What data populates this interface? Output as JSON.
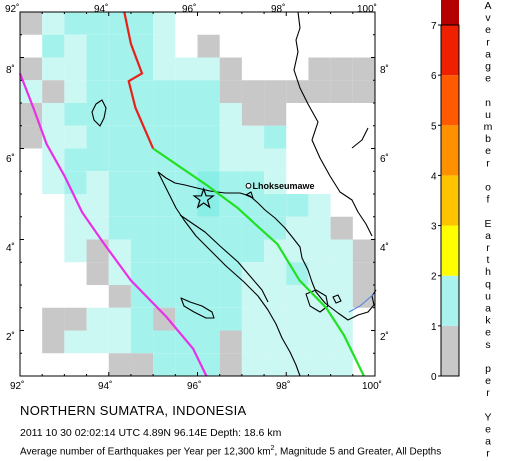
{
  "map": {
    "lon_range": [
      92,
      100
    ],
    "lat_range": [
      1,
      9
    ],
    "lon_ticks": [
      "92˚",
      "94˚",
      "96˚",
      "98˚",
      "100˚"
    ],
    "lat_ticks": [
      "2˚",
      "4˚",
      "6˚",
      "8˚"
    ],
    "colors": {
      "cell_gray": "#c8c8c8",
      "cell_cyan_light": "#ccf8f4",
      "cell_cyan": "#a4f2ec",
      "cell_cyan_strong": "#88eee6",
      "plate_boundary_red": "#e8201a",
      "plate_boundary_green": "#22e022",
      "trench_magenta": "#e830e8",
      "river": "#4a7fe0"
    },
    "cells": [
      {
        "lon": 92,
        "lat": 8.5,
        "level": "gray"
      },
      {
        "lon": 92.5,
        "lat": 8.5,
        "level": "light"
      },
      {
        "lon": 93,
        "lat": 8.5,
        "level": "cyan"
      },
      {
        "lon": 93.5,
        "lat": 8.5,
        "level": "cyan"
      },
      {
        "lon": 94,
        "lat": 8.5,
        "level": "cyan"
      },
      {
        "lon": 94.5,
        "lat": 8.5,
        "level": "cyan"
      },
      {
        "lon": 95,
        "lat": 8.5,
        "level": "light"
      },
      {
        "lon": 92,
        "lat": 8,
        "level": "none"
      },
      {
        "lon": 92.5,
        "lat": 8,
        "level": "cyan"
      },
      {
        "lon": 93,
        "lat": 8,
        "level": "light"
      },
      {
        "lon": 93.5,
        "lat": 8,
        "level": "cyan"
      },
      {
        "lon": 94,
        "lat": 8,
        "level": "cyan"
      },
      {
        "lon": 94.5,
        "lat": 8,
        "level": "cyan"
      },
      {
        "lon": 95,
        "lat": 8,
        "level": "light"
      },
      {
        "lon": 96,
        "lat": 8,
        "level": "gray"
      },
      {
        "lon": 92,
        "lat": 7.5,
        "level": "gray"
      },
      {
        "lon": 92.5,
        "lat": 7.5,
        "level": "light"
      },
      {
        "lon": 93,
        "lat": 7.5,
        "level": "light"
      },
      {
        "lon": 93.5,
        "lat": 7.5,
        "level": "cyan"
      },
      {
        "lon": 94,
        "lat": 7.5,
        "level": "cyan"
      },
      {
        "lon": 94.5,
        "lat": 7.5,
        "level": "cyan"
      },
      {
        "lon": 95,
        "lat": 7.5,
        "level": "light"
      },
      {
        "lon": 95.5,
        "lat": 7.5,
        "level": "light"
      },
      {
        "lon": 96,
        "lat": 7.5,
        "level": "light"
      },
      {
        "lon": 96.5,
        "lat": 7.5,
        "level": "gray"
      },
      {
        "lon": 98.5,
        "lat": 7.5,
        "level": "gray"
      },
      {
        "lon": 99,
        "lat": 7.5,
        "level": "gray"
      },
      {
        "lon": 99.5,
        "lat": 7.5,
        "level": "gray"
      },
      {
        "lon": 92,
        "lat": 7,
        "level": "light"
      },
      {
        "lon": 92.5,
        "lat": 7,
        "level": "gray"
      },
      {
        "lon": 93,
        "lat": 7,
        "level": "light"
      },
      {
        "lon": 93.5,
        "lat": 7,
        "level": "cyan"
      },
      {
        "lon": 94,
        "lat": 7,
        "level": "cyan"
      },
      {
        "lon": 94.5,
        "lat": 7,
        "level": "cyan"
      },
      {
        "lon": 95,
        "lat": 7,
        "level": "cyan"
      },
      {
        "lon": 95.5,
        "lat": 7,
        "level": "cyan"
      },
      {
        "lon": 96,
        "lat": 7,
        "level": "cyan"
      },
      {
        "lon": 96.5,
        "lat": 7,
        "level": "gray"
      },
      {
        "lon": 97,
        "lat": 7,
        "level": "gray"
      },
      {
        "lon": 97.5,
        "lat": 7,
        "level": "gray"
      },
      {
        "lon": 98,
        "lat": 7,
        "level": "gray"
      },
      {
        "lon": 98.5,
        "lat": 7,
        "level": "gray"
      },
      {
        "lon": 99,
        "lat": 7,
        "level": "gray"
      },
      {
        "lon": 99.5,
        "lat": 7,
        "level": "gray"
      },
      {
        "lon": 92,
        "lat": 6.5,
        "level": "gray"
      },
      {
        "lon": 92.5,
        "lat": 6.5,
        "level": "light"
      },
      {
        "lon": 93,
        "lat": 6.5,
        "level": "cyan"
      },
      {
        "lon": 93.5,
        "lat": 6.5,
        "level": "cyan"
      },
      {
        "lon": 94,
        "lat": 6.5,
        "level": "cyan"
      },
      {
        "lon": 94.5,
        "lat": 6.5,
        "level": "cyan"
      },
      {
        "lon": 95,
        "lat": 6.5,
        "level": "cyan"
      },
      {
        "lon": 95.5,
        "lat": 6.5,
        "level": "cyan"
      },
      {
        "lon": 96,
        "lat": 6.5,
        "level": "cyan"
      },
      {
        "lon": 96.5,
        "lat": 6.5,
        "level": "light"
      },
      {
        "lon": 97,
        "lat": 6.5,
        "level": "gray"
      },
      {
        "lon": 97.5,
        "lat": 6.5,
        "level": "gray"
      },
      {
        "lon": 92,
        "lat": 6,
        "level": "gray"
      },
      {
        "lon": 92.5,
        "lat": 6,
        "level": "light"
      },
      {
        "lon": 93,
        "lat": 6,
        "level": "light"
      },
      {
        "lon": 93.5,
        "lat": 6,
        "level": "cyan"
      },
      {
        "lon": 94,
        "lat": 6,
        "level": "cyan"
      },
      {
        "lon": 94.5,
        "lat": 6,
        "level": "cyan"
      },
      {
        "lon": 95,
        "lat": 6,
        "level": "cyan"
      },
      {
        "lon": 95.5,
        "lat": 6,
        "level": "cyan"
      },
      {
        "lon": 96,
        "lat": 6,
        "level": "cyan"
      },
      {
        "lon": 96.5,
        "lat": 6,
        "level": "light"
      },
      {
        "lon": 97,
        "lat": 6,
        "level": "light"
      },
      {
        "lon": 97.5,
        "lat": 6,
        "level": "cyan"
      },
      {
        "lon": 92,
        "lat": 5.5,
        "level": "none"
      },
      {
        "lon": 92.5,
        "lat": 5.5,
        "level": "light"
      },
      {
        "lon": 93,
        "lat": 5.5,
        "level": "cyan"
      },
      {
        "lon": 93.5,
        "lat": 5.5,
        "level": "cyan"
      },
      {
        "lon": 94,
        "lat": 5.5,
        "level": "cyan"
      },
      {
        "lon": 94.5,
        "lat": 5.5,
        "level": "cyan"
      },
      {
        "lon": 95,
        "lat": 5.5,
        "level": "cyan"
      },
      {
        "lon": 95.5,
        "lat": 5.5,
        "level": "cyan"
      },
      {
        "lon": 96,
        "lat": 5.5,
        "level": "cyan"
      },
      {
        "lon": 96.5,
        "lat": 5.5,
        "level": "light"
      },
      {
        "lon": 97,
        "lat": 5.5,
        "level": "light"
      },
      {
        "lon": 97.5,
        "lat": 5.5,
        "level": "light"
      },
      {
        "lon": 92,
        "lat": 5,
        "level": "none"
      },
      {
        "lon": 92.5,
        "lat": 5,
        "level": "light"
      },
      {
        "lon": 93,
        "lat": 5,
        "level": "cyan"
      },
      {
        "lon": 93.5,
        "lat": 5,
        "level": "light"
      },
      {
        "lon": 94,
        "lat": 5,
        "level": "cyan"
      },
      {
        "lon": 94.5,
        "lat": 5,
        "level": "cyan"
      },
      {
        "lon": 95,
        "lat": 5,
        "level": "cyan"
      },
      {
        "lon": 95.5,
        "lat": 5,
        "level": "cyan"
      },
      {
        "lon": 96,
        "lat": 5,
        "level": "strong"
      },
      {
        "lon": 96.5,
        "lat": 5,
        "level": "cyan"
      },
      {
        "lon": 97,
        "lat": 5,
        "level": "cyan"
      },
      {
        "lon": 97.5,
        "lat": 5,
        "level": "light"
      },
      {
        "lon": 92,
        "lat": 4.5,
        "level": "none"
      },
      {
        "lon": 92.5,
        "lat": 4.5,
        "level": "none"
      },
      {
        "lon": 93,
        "lat": 4.5,
        "level": "light"
      },
      {
        "lon": 93.5,
        "lat": 4.5,
        "level": "light"
      },
      {
        "lon": 94,
        "lat": 4.5,
        "level": "cyan"
      },
      {
        "lon": 94.5,
        "lat": 4.5,
        "level": "cyan"
      },
      {
        "lon": 95,
        "lat": 4.5,
        "level": "cyan"
      },
      {
        "lon": 95.5,
        "lat": 4.5,
        "level": "cyan"
      },
      {
        "lon": 96,
        "lat": 4.5,
        "level": "strong"
      },
      {
        "lon": 96.5,
        "lat": 4.5,
        "level": "cyan"
      },
      {
        "lon": 97,
        "lat": 4.5,
        "level": "cyan"
      },
      {
        "lon": 97.5,
        "lat": 4.5,
        "level": "cyan"
      },
      {
        "lon": 98,
        "lat": 4.5,
        "level": "cyan"
      },
      {
        "lon": 98.5,
        "lat": 4.5,
        "level": "light"
      },
      {
        "lon": 92,
        "lat": 4,
        "level": "none"
      },
      {
        "lon": 92.5,
        "lat": 4,
        "level": "none"
      },
      {
        "lon": 93,
        "lat": 4,
        "level": "light"
      },
      {
        "lon": 93.5,
        "lat": 4,
        "level": "light"
      },
      {
        "lon": 94,
        "lat": 4,
        "level": "cyan"
      },
      {
        "lon": 94.5,
        "lat": 4,
        "level": "cyan"
      },
      {
        "lon": 95,
        "lat": 4,
        "level": "cyan"
      },
      {
        "lon": 95.5,
        "lat": 4,
        "level": "cyan"
      },
      {
        "lon": 96,
        "lat": 4,
        "level": "cyan"
      },
      {
        "lon": 96.5,
        "lat": 4,
        "level": "cyan"
      },
      {
        "lon": 97,
        "lat": 4,
        "level": "cyan"
      },
      {
        "lon": 97.5,
        "lat": 4,
        "level": "cyan"
      },
      {
        "lon": 98,
        "lat": 4,
        "level": "light"
      },
      {
        "lon": 98.5,
        "lat": 4,
        "level": "light"
      },
      {
        "lon": 99,
        "lat": 4,
        "level": "gray"
      },
      {
        "lon": 92,
        "lat": 3.5,
        "level": "none"
      },
      {
        "lon": 92.5,
        "lat": 3.5,
        "level": "none"
      },
      {
        "lon": 93,
        "lat": 3.5,
        "level": "light"
      },
      {
        "lon": 93.5,
        "lat": 3.5,
        "level": "gray"
      },
      {
        "lon": 94,
        "lat": 3.5,
        "level": "light"
      },
      {
        "lon": 94.5,
        "lat": 3.5,
        "level": "cyan"
      },
      {
        "lon": 95,
        "lat": 3.5,
        "level": "cyan"
      },
      {
        "lon": 95.5,
        "lat": 3.5,
        "level": "cyan"
      },
      {
        "lon": 96,
        "lat": 3.5,
        "level": "cyan"
      },
      {
        "lon": 96.5,
        "lat": 3.5,
        "level": "cyan"
      },
      {
        "lon": 97,
        "lat": 3.5,
        "level": "cyan"
      },
      {
        "lon": 97.5,
        "lat": 3.5,
        "level": "light"
      },
      {
        "lon": 98,
        "lat": 3.5,
        "level": "light"
      },
      {
        "lon": 98.5,
        "lat": 3.5,
        "level": "light"
      },
      {
        "lon": 99,
        "lat": 3.5,
        "level": "light"
      },
      {
        "lon": 99.5,
        "lat": 3.5,
        "level": "gray"
      },
      {
        "lon": 92,
        "lat": 3,
        "level": "none"
      },
      {
        "lon": 92.5,
        "lat": 3,
        "level": "none"
      },
      {
        "lon": 93,
        "lat": 3,
        "level": "none"
      },
      {
        "lon": 93.5,
        "lat": 3,
        "level": "gray"
      },
      {
        "lon": 94,
        "lat": 3,
        "level": "light"
      },
      {
        "lon": 94.5,
        "lat": 3,
        "level": "cyan"
      },
      {
        "lon": 95,
        "lat": 3,
        "level": "cyan"
      },
      {
        "lon": 95.5,
        "lat": 3,
        "level": "cyan"
      },
      {
        "lon": 96,
        "lat": 3,
        "level": "cyan"
      },
      {
        "lon": 96.5,
        "lat": 3,
        "level": "cyan"
      },
      {
        "lon": 97,
        "lat": 3,
        "level": "light"
      },
      {
        "lon": 97.5,
        "lat": 3,
        "level": "light"
      },
      {
        "lon": 98,
        "lat": 3,
        "level": "cyan"
      },
      {
        "lon": 98.5,
        "lat": 3,
        "level": "light"
      },
      {
        "lon": 99,
        "lat": 3,
        "level": "light"
      },
      {
        "lon": 99.5,
        "lat": 3,
        "level": "gray"
      },
      {
        "lon": 92,
        "lat": 2.5,
        "level": "none"
      },
      {
        "lon": 92.5,
        "lat": 2.5,
        "level": "none"
      },
      {
        "lon": 93,
        "lat": 2.5,
        "level": "none"
      },
      {
        "lon": 93.5,
        "lat": 2.5,
        "level": "none"
      },
      {
        "lon": 94,
        "lat": 2.5,
        "level": "gray"
      },
      {
        "lon": 94.5,
        "lat": 2.5,
        "level": "cyan"
      },
      {
        "lon": 95,
        "lat": 2.5,
        "level": "cyan"
      },
      {
        "lon": 95.5,
        "lat": 2.5,
        "level": "cyan"
      },
      {
        "lon": 96,
        "lat": 2.5,
        "level": "cyan"
      },
      {
        "lon": 96.5,
        "lat": 2.5,
        "level": "cyan"
      },
      {
        "lon": 97,
        "lat": 2.5,
        "level": "light"
      },
      {
        "lon": 97.5,
        "lat": 2.5,
        "level": "light"
      },
      {
        "lon": 98,
        "lat": 2.5,
        "level": "light"
      },
      {
        "lon": 98.5,
        "lat": 2.5,
        "level": "light"
      },
      {
        "lon": 99,
        "lat": 2.5,
        "level": "light"
      },
      {
        "lon": 99.5,
        "lat": 2.5,
        "level": "gray"
      },
      {
        "lon": 92,
        "lat": 2,
        "level": "none"
      },
      {
        "lon": 92.5,
        "lat": 2,
        "level": "gray"
      },
      {
        "lon": 93,
        "lat": 2,
        "level": "gray"
      },
      {
        "lon": 93.5,
        "lat": 2,
        "level": "light"
      },
      {
        "lon": 94,
        "lat": 2,
        "level": "light"
      },
      {
        "lon": 94.5,
        "lat": 2,
        "level": "cyan"
      },
      {
        "lon": 95,
        "lat": 2,
        "level": "gray"
      },
      {
        "lon": 95.5,
        "lat": 2,
        "level": "cyan"
      },
      {
        "lon": 96,
        "lat": 2,
        "level": "cyan"
      },
      {
        "lon": 96.5,
        "lat": 2,
        "level": "cyan"
      },
      {
        "lon": 97,
        "lat": 2,
        "level": "light"
      },
      {
        "lon": 97.5,
        "lat": 2,
        "level": "light"
      },
      {
        "lon": 98,
        "lat": 2,
        "level": "light"
      },
      {
        "lon": 98.5,
        "lat": 2,
        "level": "light"
      },
      {
        "lon": 99,
        "lat": 2,
        "level": "light"
      },
      {
        "lon": 99.5,
        "lat": 2,
        "level": "none"
      },
      {
        "lon": 92,
        "lat": 1.5,
        "level": "none"
      },
      {
        "lon": 92.5,
        "lat": 1.5,
        "level": "gray"
      },
      {
        "lon": 93,
        "lat": 1.5,
        "level": "light"
      },
      {
        "lon": 93.5,
        "lat": 1.5,
        "level": "light"
      },
      {
        "lon": 94,
        "lat": 1.5,
        "level": "light"
      },
      {
        "lon": 94.5,
        "lat": 1.5,
        "level": "cyan"
      },
      {
        "lon": 95,
        "lat": 1.5,
        "level": "cyan"
      },
      {
        "lon": 95.5,
        "lat": 1.5,
        "level": "cyan"
      },
      {
        "lon": 96,
        "lat": 1.5,
        "level": "cyan"
      },
      {
        "lon": 96.5,
        "lat": 1.5,
        "level": "gray"
      },
      {
        "lon": 97,
        "lat": 1.5,
        "level": "light"
      },
      {
        "lon": 97.5,
        "lat": 1.5,
        "level": "light"
      },
      {
        "lon": 98,
        "lat": 1.5,
        "level": "light"
      },
      {
        "lon": 98.5,
        "lat": 1.5,
        "level": "light"
      },
      {
        "lon": 99,
        "lat": 1.5,
        "level": "light"
      },
      {
        "lon": 92,
        "lat": 1,
        "level": "none"
      },
      {
        "lon": 92.5,
        "lat": 1,
        "level": "none"
      },
      {
        "lon": 93,
        "lat": 1,
        "level": "none"
      },
      {
        "lon": 93.5,
        "lat": 1,
        "level": "none"
      },
      {
        "lon": 94,
        "lat": 1,
        "level": "gray"
      },
      {
        "lon": 94.5,
        "lat": 1,
        "level": "gray"
      },
      {
        "lon": 95,
        "lat": 1,
        "level": "cyan"
      },
      {
        "lon": 95.5,
        "lat": 1,
        "level": "cyan"
      },
      {
        "lon": 96,
        "lat": 1,
        "level": "cyan"
      },
      {
        "lon": 96.5,
        "lat": 1,
        "level": "gray"
      },
      {
        "lon": 97,
        "lat": 1,
        "level": "light"
      },
      {
        "lon": 97.5,
        "lat": 1,
        "level": "light"
      },
      {
        "lon": 98,
        "lat": 1,
        "level": "light"
      },
      {
        "lon": 98.5,
        "lat": 1,
        "level": "light"
      },
      {
        "lon": 99,
        "lat": 1,
        "level": "light"
      }
    ],
    "plate_boundary_red": [
      [
        94.35,
        9.0
      ],
      [
        94.5,
        8.3
      ],
      [
        94.75,
        7.65
      ],
      [
        94.45,
        7.48
      ],
      [
        94.6,
        6.9
      ],
      [
        95.0,
        6.0
      ]
    ],
    "plate_boundary_green": [
      [
        95.0,
        6.0
      ],
      [
        95.6,
        5.6
      ],
      [
        96.2,
        5.2
      ],
      [
        96.9,
        4.7
      ],
      [
        97.4,
        4.25
      ],
      [
        97.8,
        3.9
      ],
      [
        98.3,
        3.1
      ],
      [
        98.9,
        2.5
      ],
      [
        99.3,
        1.9
      ],
      [
        99.75,
        1.0
      ]
    ],
    "trench_magenta": [
      [
        92.0,
        7.65
      ],
      [
        92.3,
        6.9
      ],
      [
        92.6,
        6.1
      ],
      [
        93.0,
        5.4
      ],
      [
        93.4,
        4.6
      ],
      [
        93.9,
        3.9
      ],
      [
        94.5,
        3.1
      ],
      [
        95.3,
        2.3
      ],
      [
        95.9,
        1.6
      ],
      [
        96.2,
        1.0
      ]
    ],
    "epicenter": {
      "lon": 96.14,
      "lat": 4.89
    },
    "city": {
      "name": "Lhokseumawe",
      "lon": 97.15,
      "lat": 5.18
    }
  },
  "legend": {
    "min": 0,
    "max": 7,
    "tick_labels": [
      "0",
      "1",
      "2",
      "3",
      "4",
      "5",
      "6",
      "7"
    ],
    "title": "Average number of Earthquakes per Year",
    "colors": [
      "#c8c8c8",
      "#aaf2ee",
      "#ffff00",
      "#ffc400",
      "#ff9000",
      "#ff5a00",
      "#ee2000",
      "#b40000"
    ]
  },
  "captions": {
    "region": "NORTHERN SUMATRA, INDONESIA",
    "event": "2011 10 30 02:02:14 UTC 4.89N 96.14E Depth: 18.6 km",
    "avg_prefix": "Average number of Earthquakes per Year per 12,300 km",
    "avg_superscript": "2",
    "avg_suffix": ", Magnitude 5 and Greater, All Depths"
  }
}
